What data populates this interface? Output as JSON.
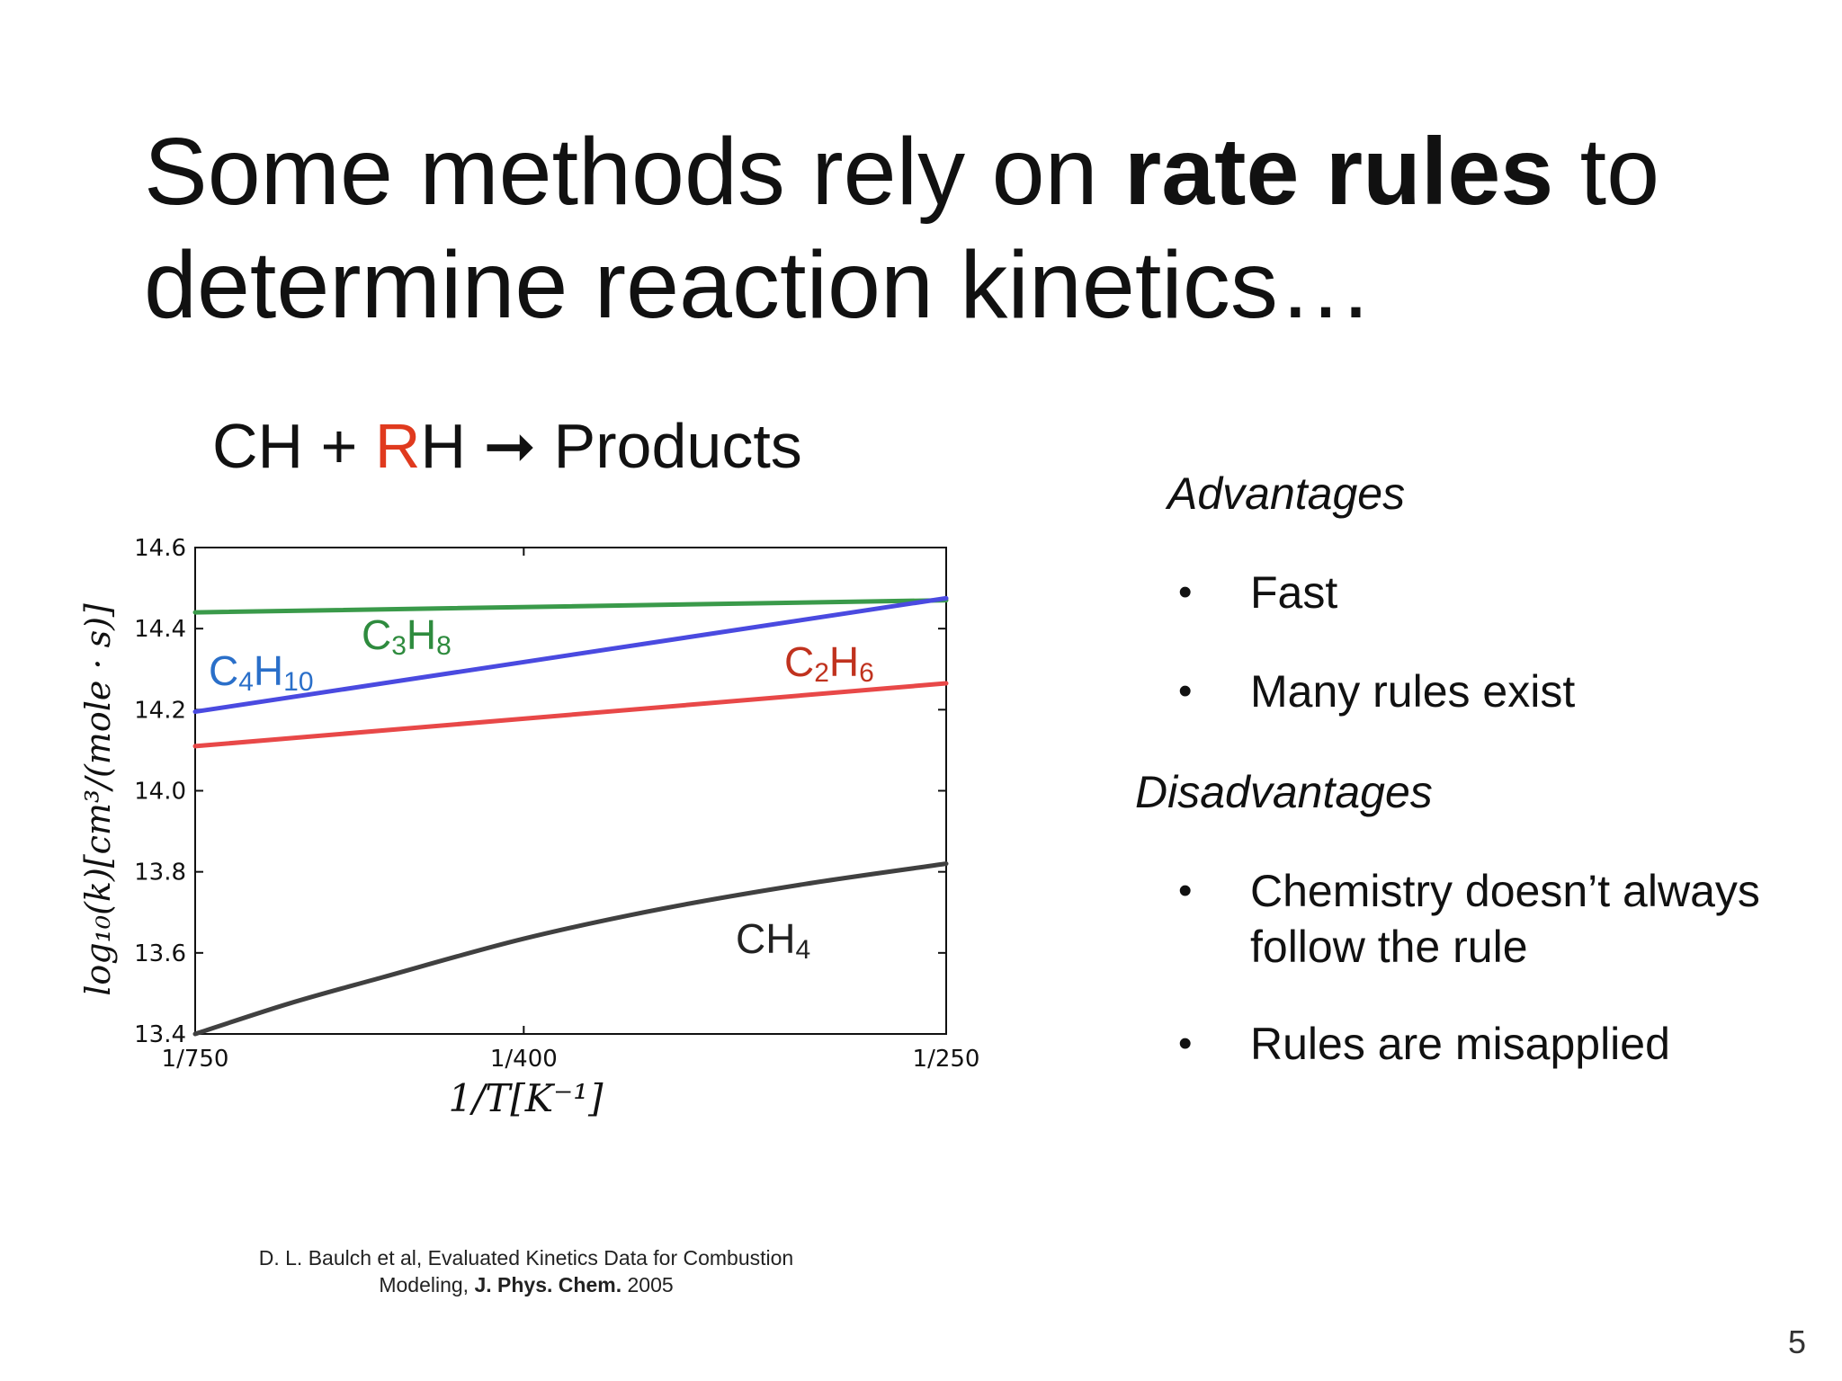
{
  "slide": {
    "title_part1": "Some methods rely on ",
    "title_bold": "rate rules",
    "title_part2": " to determine reaction kinetics…",
    "reaction": {
      "left": "CH + ",
      "r": "R",
      "right": "H ➞ Products"
    },
    "citation_line1": "D. L. Baulch et al, Evaluated Kinetics Data for Combustion",
    "citation_line2_prefix": "Modeling, ",
    "citation_journal": "J. Phys. Chem.",
    "citation_year": " 2005",
    "page_number": "5"
  },
  "pros_cons": {
    "advantages_heading": "Advantages",
    "advantages": [
      "Fast",
      "Many rules exist"
    ],
    "disadvantages_heading": "Disadvantages",
    "disadvantages": [
      "Chemistry doesn’t always follow the rule",
      "Rules are misapplied"
    ],
    "bullet_symbol": "•"
  },
  "chart_data": {
    "type": "line",
    "xlabel": "1/T[K⁻¹]",
    "ylabel": "log₁₀(k)[cm³/(mole · s)]",
    "xlim": [
      0.0013333,
      0.004
    ],
    "ylim": [
      13.4,
      14.6
    ],
    "x_ticks": [
      {
        "value": 0.0013333,
        "label": "1/750"
      },
      {
        "value": 0.0025,
        "label": "1/400"
      },
      {
        "value": 0.004,
        "label": "1/250"
      }
    ],
    "y_ticks": [
      13.4,
      13.6,
      13.8,
      14.0,
      14.2,
      14.4,
      14.6
    ],
    "series": [
      {
        "name": "C3H8",
        "label_main": "C",
        "label_sub1": "3",
        "label_mid": "H",
        "label_sub2": "8",
        "color": "#3a9a4a",
        "x": [
          0.0013333,
          0.004
        ],
        "y": [
          14.44,
          14.47
        ]
      },
      {
        "name": "C4H10",
        "label_main": "C",
        "label_sub1": "4",
        "label_mid": "H",
        "label_sub2": "10",
        "color": "#4a4ae0",
        "x": [
          0.0013333,
          0.004
        ],
        "y": [
          14.195,
          14.475
        ]
      },
      {
        "name": "C2H6",
        "label_main": "C",
        "label_sub1": "2",
        "label_mid": "H",
        "label_sub2": "6",
        "color": "#e84848",
        "x": [
          0.0013333,
          0.004
        ],
        "y": [
          14.11,
          14.265
        ]
      },
      {
        "name": "CH4",
        "label_main": "CH",
        "label_sub1": "4",
        "label_mid": "",
        "label_sub2": "",
        "color": "#404040",
        "x": [
          0.0013333,
          0.00166667,
          0.002,
          0.0025,
          0.003,
          0.0035,
          0.004
        ],
        "y": [
          13.4,
          13.475,
          13.54,
          13.635,
          13.71,
          13.77,
          13.82
        ]
      }
    ],
    "label_colors": {
      "C3H8": "#2e8b3e",
      "C4H10": "#2a6fc9",
      "C2H6": "#c0321e",
      "CH4": "#222222"
    }
  }
}
